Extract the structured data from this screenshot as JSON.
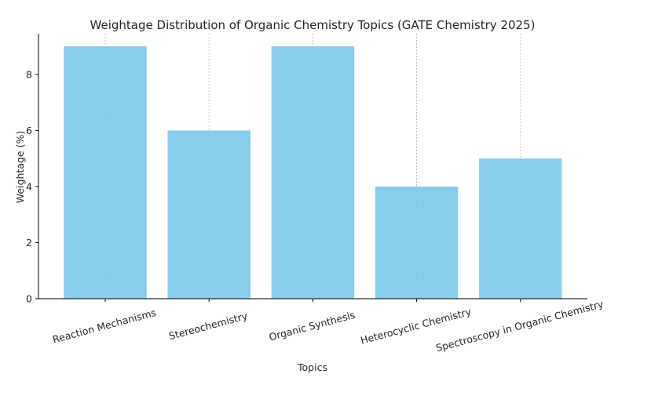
{
  "chart_data": {
    "type": "bar",
    "title": "Weightage Distribution of Organic Chemistry Topics (GATE Chemistry 2025)",
    "xlabel": "Topics",
    "ylabel": "Weightage (%)",
    "categories": [
      "Reaction Mechanisms",
      "Stereochemistry",
      "Organic Synthesis",
      "Heterocyclic Chemistry",
      "Spectroscopy in Organic Chemistry"
    ],
    "values": [
      9,
      6,
      9,
      4,
      5
    ],
    "yticks": [
      0,
      2,
      4,
      6,
      8
    ],
    "ylim": [
      0,
      9.45
    ],
    "bar_color": "#87ceeb",
    "grid": "vertical dashed",
    "spines": "left and bottom"
  }
}
